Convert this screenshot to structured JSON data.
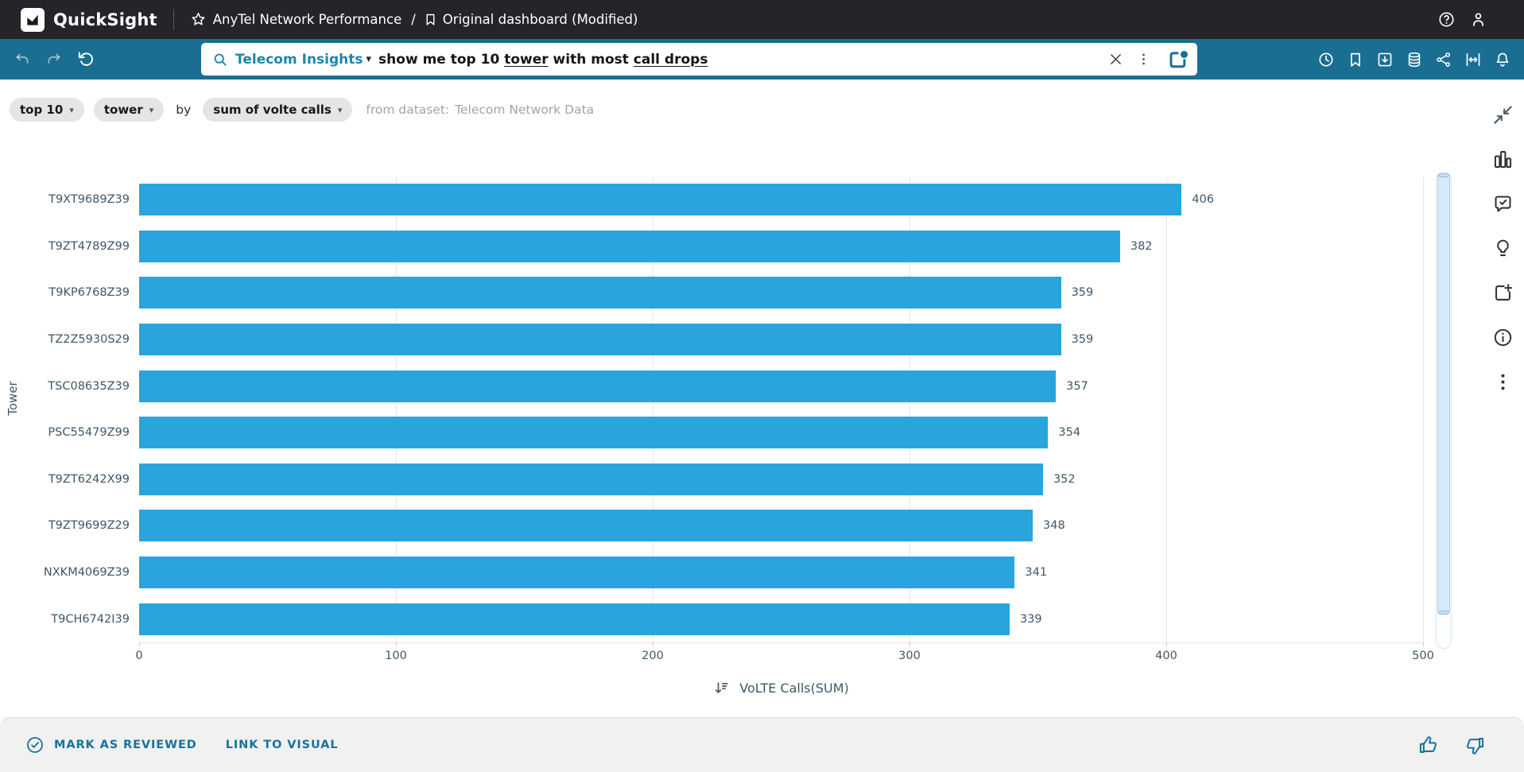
{
  "topbar": {
    "brand": "QuickSight",
    "dashboard_name": "AnyTel Network Performance",
    "separator": "/",
    "view_name": "Original dashboard (Modified)"
  },
  "qbar": {
    "topic": "Telecom Insights",
    "query": {
      "part1": "show me top 10 ",
      "field1": "tower",
      "part2": " with most ",
      "field2": "call drops"
    }
  },
  "chips": {
    "limit": "top 10",
    "dimension": "tower",
    "connector": "by",
    "measure": "sum of volte calls",
    "dataset_prefix": "from dataset:",
    "dataset_name": "Telecom Network Data"
  },
  "chart_data": {
    "type": "bar",
    "orientation": "horizontal",
    "categories": [
      "T9XT9689Z39",
      "T9ZT4789Z99",
      "T9KP6768Z39",
      "TZ2Z5930S29",
      "TSC08635Z39",
      "PSC55479Z99",
      "T9ZT6242X99",
      "T9ZT9699Z29",
      "NXKM4069Z39",
      "T9CH6742I39"
    ],
    "values": [
      406,
      382,
      359,
      359,
      357,
      354,
      352,
      348,
      341,
      339
    ],
    "xlabel": "VoLTE Calls(SUM)",
    "ylabel": "Tower",
    "xlim": [
      0,
      500
    ],
    "xticks": [
      0,
      100,
      200,
      300,
      400,
      500
    ],
    "grid": true,
    "sort": "descending",
    "bar_color": "#29A4DC",
    "legend": "none"
  },
  "footer": {
    "review_label": "MARK AS REVIEWED",
    "link_label": "LINK TO VISUAL"
  },
  "icons": {
    "topbar": [
      "quicksight-logo-icon",
      "favorite-star-icon",
      "bookmark-icon",
      "help-icon",
      "user-icon"
    ],
    "qbar_left": [
      "undo-icon",
      "redo-icon",
      "reset-icon"
    ],
    "searchbar": [
      "search-icon",
      "topic-caret-icon",
      "clear-icon",
      "kebab-icon",
      "pin-board-icon"
    ],
    "qbar_right": [
      "history-icon",
      "bookmark-icon",
      "export-icon",
      "dataset-icon",
      "share-icon",
      "fit-width-icon",
      "notifications-icon"
    ],
    "sidebar": [
      "collapse-icon",
      "chart-type-icon",
      "comment-check-icon",
      "insight-icon",
      "add-visual-icon",
      "info-icon",
      "more-menu-icon"
    ],
    "xaxis": [
      "sort-descending-icon"
    ],
    "footer": [
      "check-circle-icon",
      "thumbs-up-icon",
      "thumbs-down-icon"
    ]
  },
  "colors": {
    "topbar_bg": "#242528",
    "qbar_bg": "#1A6E92",
    "bar": "#29A4DC",
    "accent_teal": "#1E86AD",
    "footer_link": "#17749B",
    "chart_text": "#3F5767",
    "chip_bg": "#E5E5E5",
    "muted_text": "#A3A3A3"
  }
}
